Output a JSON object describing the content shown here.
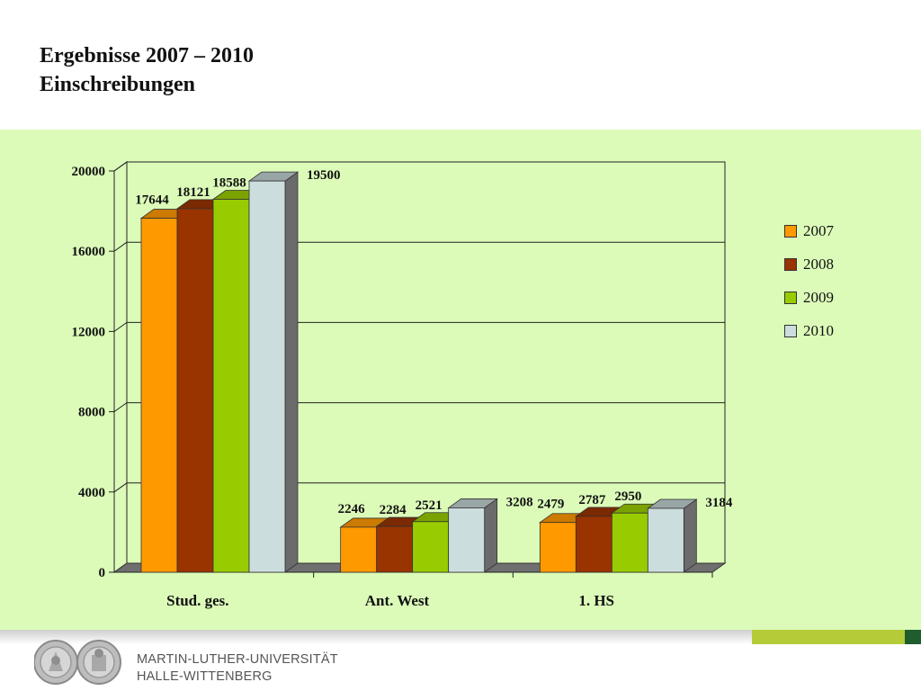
{
  "slide": {
    "title_line1": "Ergebnisse 2007 – 2010",
    "title_line2": "Einschreibungen"
  },
  "footer": {
    "university_line1": "MARTIN-LUTHER-UNIVERSITÄT",
    "university_line2": "HALLE-WITTENBERG"
  },
  "chart_data": {
    "type": "bar",
    "categories": [
      "Stud. ges.",
      "Ant. West",
      "1. HS"
    ],
    "series": [
      {
        "name": "2007",
        "values": [
          17644,
          2246,
          2479
        ],
        "color": "#ff9900"
      },
      {
        "name": "2008",
        "values": [
          18121,
          2284,
          2787
        ],
        "color": "#993300"
      },
      {
        "name": "2009",
        "values": [
          18588,
          2521,
          2950
        ],
        "color": "#99cc00"
      },
      {
        "name": "2010",
        "values": [
          19500,
          3208,
          3184
        ],
        "color": "#ccdddd"
      }
    ],
    "ylim": [
      0,
      20000
    ],
    "yticks": [
      "0",
      "4000",
      "8000",
      "12000",
      "16000",
      "20000"
    ],
    "grid": true,
    "legend": "right",
    "style": "3d-clustered-bar"
  }
}
